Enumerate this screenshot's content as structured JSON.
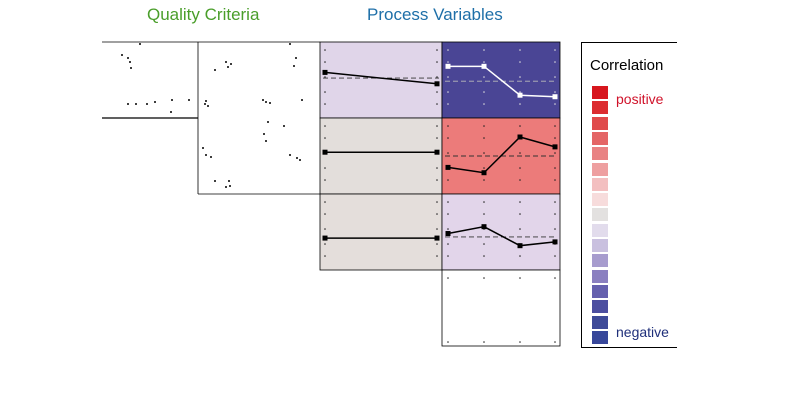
{
  "headers": {
    "quality": "Quality Criteria",
    "process": "Process Variables"
  },
  "colors": {
    "quality_header": "#4a9e2a",
    "process_header": "#1e6fa8",
    "positive_label": "#d0122a",
    "negative_label": "#1f2f7a"
  },
  "legend": {
    "title": "Correlation",
    "positive_label": "positive",
    "negative_label": "negative",
    "scale_colors": [
      "#d7161e",
      "#dc2c30",
      "#e04a4b",
      "#e46566",
      "#e98283",
      "#ee9fa0",
      "#f3bfc0",
      "#f7dcdc",
      "#e3e1e0",
      "#e2dcec",
      "#c9c0df",
      "#a79cce",
      "#8a7fc0",
      "#6560ae",
      "#4c4ea0",
      "#3e4a98",
      "#37479a"
    ]
  },
  "cells": [
    {
      "id": "r0-c2",
      "correlation": 0.05,
      "fill": "#e0d5e9",
      "line_color": "#000",
      "values": [
        0.6,
        0.45
      ]
    },
    {
      "id": "r0-c3",
      "correlation": -0.95,
      "fill": "#4a4595",
      "line_color": "#fff",
      "values": [
        0.68,
        0.68,
        0.3,
        0.28
      ]
    },
    {
      "id": "r1-c2",
      "correlation": 0.0,
      "fill": "#e3dedb",
      "line_color": "#000",
      "values": [
        0.55,
        0.55
      ]
    },
    {
      "id": "r1-c3",
      "correlation": 0.7,
      "fill": "#ec7b7a",
      "line_color": "#000",
      "values": [
        0.35,
        0.28,
        0.75,
        0.62
      ]
    },
    {
      "id": "r2-c2",
      "correlation": 0.0,
      "fill": "#e4dedb",
      "line_color": "#000",
      "values": [
        0.42,
        0.42
      ]
    },
    {
      "id": "r2-c3",
      "correlation": -0.15,
      "fill": "#e2d5ea",
      "line_color": "#000",
      "values": [
        0.48,
        0.57,
        0.32,
        0.37
      ]
    }
  ]
}
